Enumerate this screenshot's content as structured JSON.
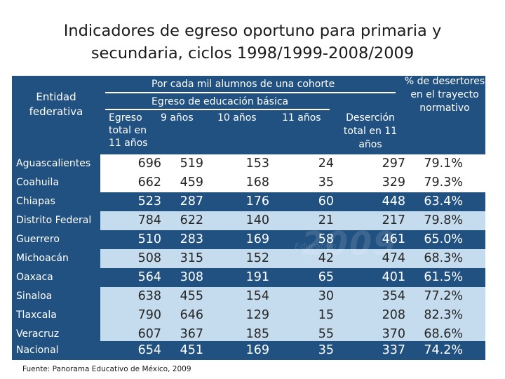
{
  "title_line1": "Indicadores de egreso oportuno para primaria y",
  "title_line2": "secundaria, ciclos 1998/1999-2008/2009",
  "headers": {
    "entidad_line1": "Entidad",
    "entidad_line2": "federativa",
    "por_cada_mil": "Por cada mil alumnos de una cohorte",
    "egreso_basica": "Egreso de educación básica",
    "egreso_total_line1": "Egreso",
    "egreso_total_line2": "total en",
    "egreso_total_line3": "11 años",
    "nueve_anios": "9 años",
    "diez_anios": "10 años",
    "once_anios": "11 años",
    "desercion_line1": "Deserción",
    "desercion_line2": "total en 11",
    "desercion_line3": "años",
    "pct_line1": "% de desertores",
    "pct_line2": "en el trayecto",
    "pct_line3": "normativo"
  },
  "rows": [
    {
      "entidad": "Aguascalientes",
      "egreso_total": "696",
      "nueve": "519",
      "diez": "153",
      "once": "24",
      "desercion": "297",
      "pct": "79.1%"
    },
    {
      "entidad": "Coahuila",
      "egreso_total": "662",
      "nueve": "459",
      "diez": "168",
      "once": "35",
      "desercion": "329",
      "pct": "79.3%"
    },
    {
      "entidad": "Chiapas",
      "egreso_total": "523",
      "nueve": "287",
      "diez": "176",
      "once": "60",
      "desercion": "448",
      "pct": "63.4%"
    },
    {
      "entidad": "Distrito Federal",
      "egreso_total": "784",
      "nueve": "622",
      "diez": "140",
      "once": "21",
      "desercion": "217",
      "pct": "79.8%"
    },
    {
      "entidad": "Guerrero",
      "egreso_total": "510",
      "nueve": "283",
      "diez": "169",
      "once": "58",
      "desercion": "461",
      "pct": "65.0%"
    },
    {
      "entidad": "Michoacán",
      "egreso_total": "508",
      "nueve": "315",
      "diez": "152",
      "once": "42",
      "desercion": "474",
      "pct": "68.3%"
    },
    {
      "entidad": "Oaxaca",
      "egreso_total": "564",
      "nueve": "308",
      "diez": "191",
      "once": "65",
      "desercion": "401",
      "pct": "61.5%"
    },
    {
      "entidad": "Sinaloa",
      "egreso_total": "638",
      "nueve": "455",
      "diez": "154",
      "once": "30",
      "desercion": "354",
      "pct": "77.2%"
    },
    {
      "entidad": "Tlaxcala",
      "egreso_total": "790",
      "nueve": "646",
      "diez": "129",
      "once": "15",
      "desercion": "208",
      "pct": "82.3%"
    },
    {
      "entidad": "Veracruz",
      "egreso_total": "607",
      "nueve": "367",
      "diez": "185",
      "once": "55",
      "desercion": "370",
      "pct": "68.6%"
    },
    {
      "entidad": "Nacional",
      "egreso_total": "654",
      "nueve": "451",
      "diez": "169",
      "once": "35",
      "desercion": "337",
      "pct": "74.2%"
    }
  ],
  "watermark": "2009",
  "watermark_sub": "Educativo",
  "source": "Fuente: Panorama Educativo de México, 2009",
  "colors": {
    "blue": "#215180",
    "light": "#c5dcef",
    "white": "#ffffff"
  }
}
